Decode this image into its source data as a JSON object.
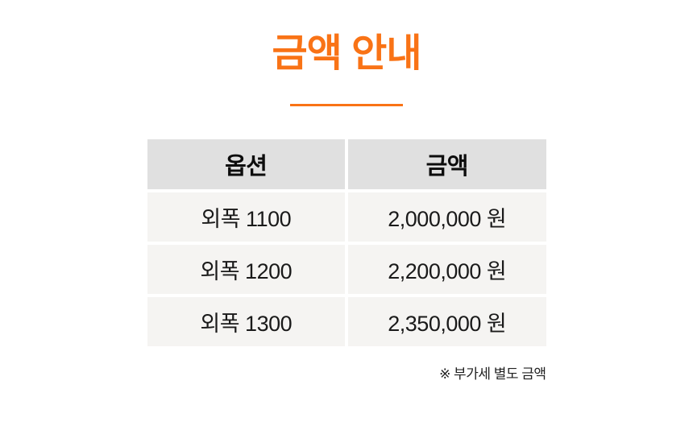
{
  "page": {
    "title": "금액 안내",
    "note": "※ 부가세 별도 금액"
  },
  "table": {
    "headers": {
      "option": "옵션",
      "price": "금액"
    },
    "rows": [
      {
        "option": "외폭 1100",
        "price": "2,000,000 원"
      },
      {
        "option": "외폭 1200",
        "price": "2,200,000 원"
      },
      {
        "option": "외폭 1300",
        "price": "2,350,000 원"
      }
    ]
  },
  "colors": {
    "accent_orange": "#f97316",
    "header_bg": "#e0e0e0",
    "row_bg": "#f5f4f2",
    "text": "#111111"
  }
}
